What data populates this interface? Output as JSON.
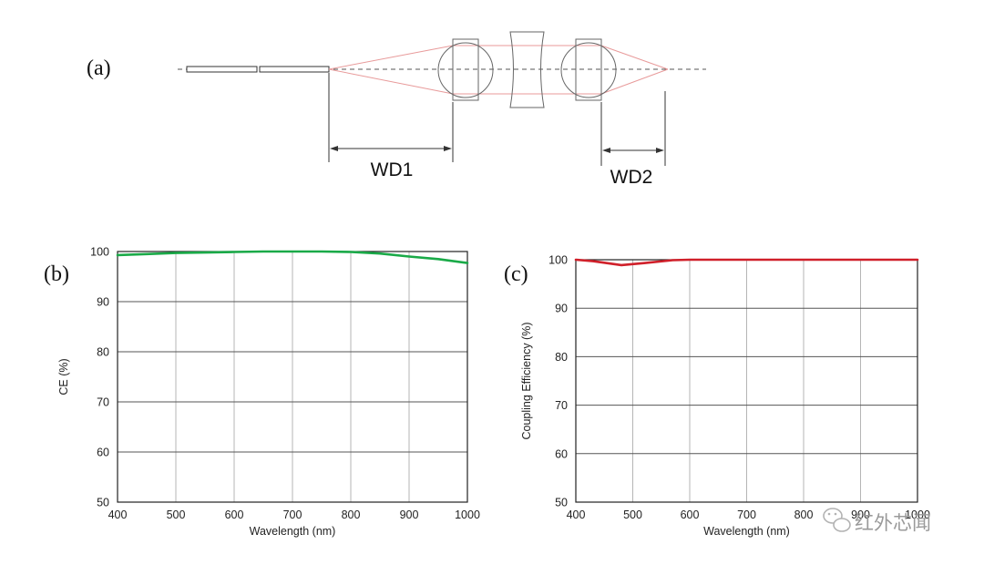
{
  "figure": {
    "panel_a": {
      "label": "(a)",
      "wd1_label": "WD1",
      "wd2_label": "WD2"
    },
    "watermark": "红外芯闻",
    "colors": {
      "ray": "#e89a9a",
      "lens": "#666666",
      "grid": "#b5b5b5"
    }
  },
  "chart_data": [
    {
      "panel": "(b)",
      "type": "line",
      "title": "",
      "xlabel": "Wavelength (nm)",
      "ylabel": "CE (%)",
      "xlim": [
        400,
        1000
      ],
      "ylim": [
        50,
        100
      ],
      "xticks": [
        400,
        500,
        600,
        700,
        800,
        900,
        1000
      ],
      "yticks": [
        50,
        60,
        70,
        80,
        90,
        100
      ],
      "grid": true,
      "series": [
        {
          "name": "CE",
          "color": "#1aaa48",
          "x": [
            400,
            450,
            500,
            550,
            600,
            650,
            700,
            750,
            800,
            850,
            900,
            950,
            1000
          ],
          "y": [
            99.3,
            99.5,
            99.7,
            99.8,
            99.9,
            100,
            100,
            100,
            99.9,
            99.6,
            99.0,
            98.5,
            97.7
          ]
        }
      ]
    },
    {
      "panel": "(c)",
      "type": "line",
      "title": "",
      "xlabel": "Wavelength (nm)",
      "ylabel": "Coupling Efficiency (%)",
      "xlim": [
        400,
        1000
      ],
      "ylim": [
        50,
        100
      ],
      "xticks": [
        400,
        500,
        600,
        700,
        800,
        900,
        1000
      ],
      "yticks": [
        50,
        60,
        70,
        80,
        90,
        100
      ],
      "grid": true,
      "series": [
        {
          "name": "Coupling Efficiency",
          "color": "#d0202a",
          "x": [
            400,
            430,
            480,
            520,
            570,
            600,
            700,
            800,
            900,
            1000
          ],
          "y": [
            100,
            99.7,
            98.9,
            99.3,
            99.9,
            100,
            100,
            100,
            100,
            100
          ]
        }
      ]
    }
  ]
}
